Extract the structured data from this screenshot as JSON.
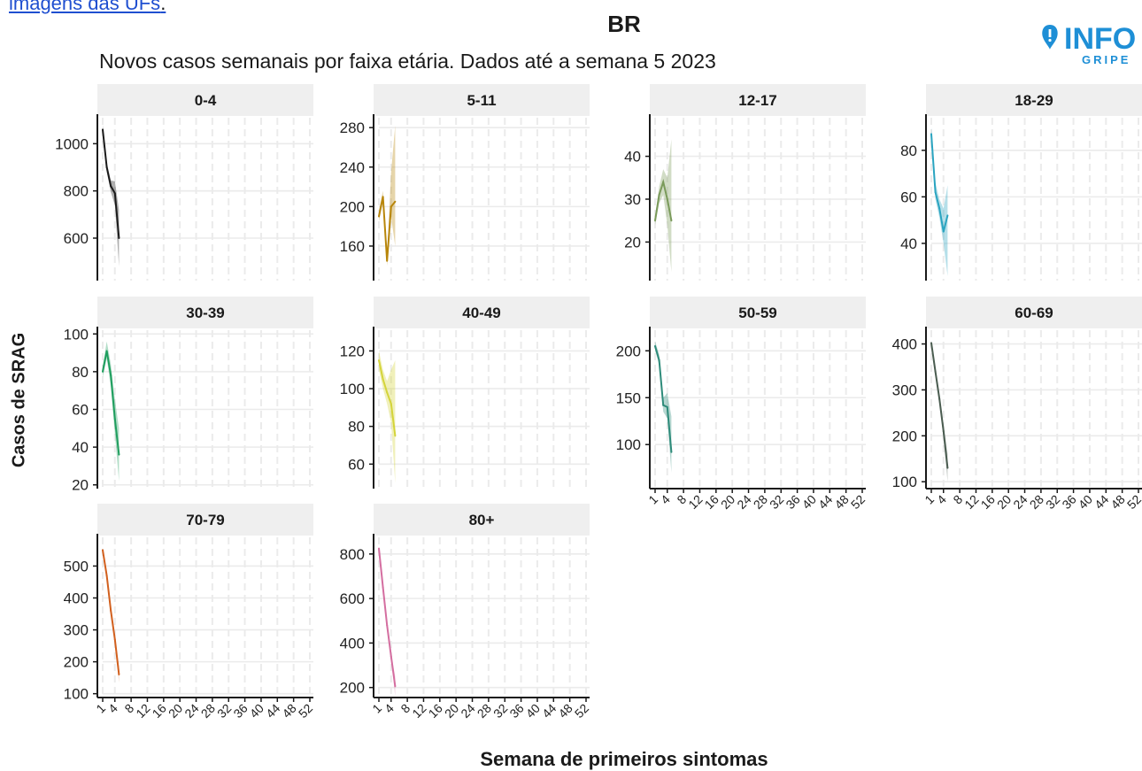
{
  "header": {
    "link_text": "imagens das UFs",
    "link_suffix": ".",
    "logo_main": "INFO",
    "logo_sub": "GRIPE"
  },
  "colors": {
    "link": "#1f4fd0",
    "strip_bg": "#efefef",
    "grid": "#ebebeb",
    "logo_blue": "#1e8fd6"
  },
  "chart_data": {
    "type": "line",
    "title": "BR",
    "subtitle": "Novos casos semanais por faixa etária. Dados até a semana 5 2023",
    "xlabel": "Semana de primeiros sintomas",
    "ylabel": "Casos de SRAG",
    "x_ticks": [
      1,
      4,
      8,
      12,
      16,
      20,
      24,
      28,
      32,
      36,
      40,
      44,
      48,
      52
    ],
    "xlim": [
      1,
      52
    ],
    "grid": true,
    "legend": "none",
    "panels": [
      {
        "name": "0-4",
        "color": "#1a1a1a",
        "y_ticks": [
          600,
          800,
          1000
        ],
        "ylim": [
          420,
          1110
        ],
        "x": [
          1,
          2,
          3,
          4,
          5
        ],
        "values": [
          1060,
          900,
          820,
          790,
          600
        ],
        "lower": [
          1030,
          880,
          795,
          740,
          480
        ],
        "upper": [
          1080,
          920,
          845,
          840,
          720
        ]
      },
      {
        "name": "5-11",
        "color": "#b8860b",
        "y_ticks": [
          160,
          200,
          240,
          280
        ],
        "ylim": [
          125,
          290
        ],
        "x": [
          1,
          2,
          3,
          4,
          5
        ],
        "values": [
          190,
          210,
          145,
          200,
          205
        ],
        "lower": [
          185,
          205,
          140,
          190,
          160
        ],
        "upper": [
          196,
          216,
          150,
          235,
          282
        ]
      },
      {
        "name": "12-17",
        "color": "#7a9a5a",
        "y_ticks": [
          20,
          30,
          40
        ],
        "ylim": [
          11,
          49
        ],
        "x": [
          1,
          2,
          3,
          4,
          5
        ],
        "values": [
          25,
          31,
          34,
          30,
          25
        ],
        "lower": [
          24,
          29,
          31,
          24,
          13
        ],
        "upper": [
          26,
          33,
          37,
          35,
          44
        ]
      },
      {
        "name": "18-29",
        "color": "#2aa4c0",
        "y_ticks": [
          40,
          60,
          80
        ],
        "ylim": [
          24,
          94
        ],
        "x": [
          1,
          2,
          3,
          4,
          5
        ],
        "values": [
          87,
          62,
          55,
          45,
          52
        ],
        "lower": [
          84,
          59,
          51,
          40,
          26
        ],
        "upper": [
          90,
          66,
          59,
          55,
          65
        ]
      },
      {
        "name": "30-39",
        "color": "#1f9e5e",
        "y_ticks": [
          20,
          40,
          60,
          80,
          100
        ],
        "ylim": [
          18,
          102
        ],
        "x": [
          1,
          2,
          3,
          4,
          5
        ],
        "values": [
          80,
          91,
          78,
          55,
          36
        ],
        "lower": [
          77,
          87,
          72,
          47,
          22
        ],
        "upper": [
          83,
          96,
          84,
          65,
          50
        ]
      },
      {
        "name": "40-49",
        "color": "#d4d43a",
        "y_ticks": [
          60,
          80,
          100,
          120
        ],
        "ylim": [
          47,
          131
        ],
        "x": [
          1,
          2,
          3,
          4,
          5
        ],
        "values": [
          115,
          105,
          98,
          92,
          75
        ],
        "lower": [
          110,
          100,
          92,
          82,
          50
        ],
        "upper": [
          120,
          110,
          104,
          110,
          115
        ]
      },
      {
        "name": "50-59",
        "color": "#2e8b7a",
        "y_ticks": [
          100,
          150,
          200
        ],
        "ylim": [
          53,
          222
        ],
        "x": [
          1,
          2,
          3,
          4,
          5
        ],
        "values": [
          205,
          190,
          142,
          140,
          92
        ],
        "lower": [
          200,
          185,
          135,
          128,
          70
        ],
        "upper": [
          210,
          196,
          150,
          155,
          130
        ]
      },
      {
        "name": "60-69",
        "color": "#4a5c50",
        "y_ticks": [
          100,
          200,
          300,
          400
        ],
        "ylim": [
          85,
          430
        ],
        "x": [
          1,
          2,
          3,
          4,
          5
        ],
        "values": [
          402,
          340,
          280,
          210,
          130
        ],
        "lower": [
          398,
          334,
          272,
          195,
          100
        ],
        "upper": [
          406,
          346,
          288,
          225,
          160
        ]
      },
      {
        "name": "70-79",
        "color": "#d2601e",
        "y_ticks": [
          100,
          200,
          300,
          400,
          500
        ],
        "ylim": [
          88,
          590
        ],
        "x": [
          1,
          2,
          3,
          4,
          5
        ],
        "values": [
          550,
          470,
          360,
          270,
          160
        ],
        "lower": [
          546,
          466,
          354,
          262,
          135
        ],
        "upper": [
          554,
          474,
          366,
          278,
          185
        ]
      },
      {
        "name": "80+",
        "color": "#d46ea0",
        "y_ticks": [
          200,
          400,
          600,
          800
        ],
        "ylim": [
          155,
          875
        ],
        "x": [
          1,
          2,
          3,
          4,
          5
        ],
        "values": [
          825,
          650,
          480,
          340,
          205
        ],
        "lower": [
          820,
          645,
          474,
          330,
          160
        ],
        "upper": [
          830,
          655,
          486,
          350,
          250
        ]
      }
    ]
  }
}
